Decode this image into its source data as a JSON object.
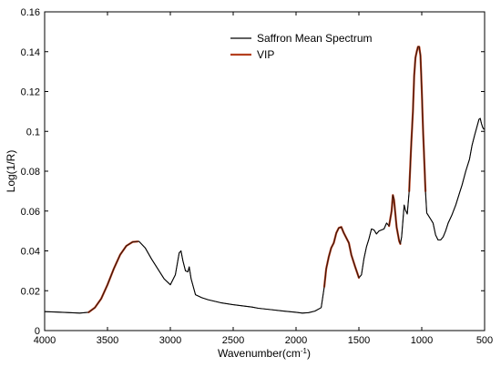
{
  "chart_data": {
    "type": "line",
    "title": "",
    "xlabel": "Wavenumber(cm",
    "xlabel_sup": "-1",
    "xlabel_tail": ")",
    "ylabel": "Log(1/R)",
    "xlim": [
      4000,
      500
    ],
    "ylim": [
      0,
      0.16
    ],
    "x_reversed": true,
    "grid": false,
    "legend_position": "top-right",
    "x_ticks": [
      4000,
      3500,
      3000,
      2500,
      2000,
      1500,
      1000,
      500
    ],
    "x_tick_labels": [
      "4000",
      "3500",
      "3000",
      "2500",
      "2000",
      "1500",
      "1000",
      "500"
    ],
    "y_ticks": [
      0,
      0.02,
      0.04,
      0.06,
      0.08,
      0.1,
      0.12,
      0.14,
      0.16
    ],
    "y_tick_labels": [
      "0",
      "0.02",
      "0.04",
      "0.06",
      "0.08",
      "0.1",
      "0.12",
      "0.14",
      "0.16"
    ],
    "series": [
      {
        "name": "Saffron Mean Spectrum",
        "color": "#000000",
        "points": [
          [
            4000,
            0.0095
          ],
          [
            3900,
            0.0093
          ],
          [
            3800,
            0.009
          ],
          [
            3720,
            0.0088
          ],
          [
            3650,
            0.0092
          ],
          [
            3600,
            0.0115
          ],
          [
            3550,
            0.016
          ],
          [
            3500,
            0.023
          ],
          [
            3450,
            0.031
          ],
          [
            3400,
            0.038
          ],
          [
            3350,
            0.0425
          ],
          [
            3300,
            0.0445
          ],
          [
            3250,
            0.0448
          ],
          [
            3200,
            0.0415
          ],
          [
            3150,
            0.036
          ],
          [
            3100,
            0.031
          ],
          [
            3050,
            0.026
          ],
          [
            3000,
            0.023
          ],
          [
            2960,
            0.028
          ],
          [
            2930,
            0.039
          ],
          [
            2915,
            0.04
          ],
          [
            2900,
            0.035
          ],
          [
            2880,
            0.03
          ],
          [
            2860,
            0.0295
          ],
          [
            2850,
            0.032
          ],
          [
            2835,
            0.026
          ],
          [
            2800,
            0.018
          ],
          [
            2750,
            0.0165
          ],
          [
            2700,
            0.0155
          ],
          [
            2600,
            0.014
          ],
          [
            2500,
            0.013
          ],
          [
            2400,
            0.0122
          ],
          [
            2350,
            0.0118
          ],
          [
            2300,
            0.0112
          ],
          [
            2200,
            0.0105
          ],
          [
            2100,
            0.0098
          ],
          [
            2000,
            0.0092
          ],
          [
            1950,
            0.0088
          ],
          [
            1900,
            0.009
          ],
          [
            1850,
            0.0098
          ],
          [
            1800,
            0.0115
          ],
          [
            1775,
            0.022
          ],
          [
            1760,
            0.031
          ],
          [
            1740,
            0.037
          ],
          [
            1720,
            0.0415
          ],
          [
            1700,
            0.044
          ],
          [
            1680,
            0.049
          ],
          [
            1660,
            0.0515
          ],
          [
            1640,
            0.052
          ],
          [
            1620,
            0.049
          ],
          [
            1600,
            0.0465
          ],
          [
            1580,
            0.044
          ],
          [
            1560,
            0.038
          ],
          [
            1530,
            0.032
          ],
          [
            1500,
            0.0265
          ],
          [
            1480,
            0.028
          ],
          [
            1460,
            0.036
          ],
          [
            1440,
            0.042
          ],
          [
            1420,
            0.046
          ],
          [
            1400,
            0.051
          ],
          [
            1380,
            0.0505
          ],
          [
            1360,
            0.0485
          ],
          [
            1340,
            0.05
          ],
          [
            1320,
            0.0505
          ],
          [
            1300,
            0.051
          ],
          [
            1280,
            0.054
          ],
          [
            1260,
            0.0525
          ],
          [
            1240,
            0.06
          ],
          [
            1230,
            0.068
          ],
          [
            1220,
            0.0655
          ],
          [
            1200,
            0.052
          ],
          [
            1180,
            0.045
          ],
          [
            1170,
            0.0435
          ],
          [
            1160,
            0.047
          ],
          [
            1150,
            0.055
          ],
          [
            1140,
            0.063
          ],
          [
            1130,
            0.0605
          ],
          [
            1115,
            0.0585
          ],
          [
            1100,
            0.07
          ],
          [
            1085,
            0.092
          ],
          [
            1070,
            0.11
          ],
          [
            1060,
            0.128
          ],
          [
            1050,
            0.137
          ],
          [
            1040,
            0.14
          ],
          [
            1030,
            0.1425
          ],
          [
            1020,
            0.1425
          ],
          [
            1010,
            0.138
          ],
          [
            1000,
            0.121
          ],
          [
            990,
            0.101
          ],
          [
            980,
            0.085
          ],
          [
            970,
            0.07
          ],
          [
            960,
            0.059
          ],
          [
            950,
            0.058
          ],
          [
            940,
            0.057
          ],
          [
            930,
            0.056
          ],
          [
            910,
            0.054
          ],
          [
            890,
            0.048
          ],
          [
            870,
            0.0455
          ],
          [
            850,
            0.0455
          ],
          [
            830,
            0.047
          ],
          [
            810,
            0.05
          ],
          [
            790,
            0.054
          ],
          [
            760,
            0.058
          ],
          [
            730,
            0.063
          ],
          [
            700,
            0.069
          ],
          [
            680,
            0.073
          ],
          [
            650,
            0.08
          ],
          [
            620,
            0.086
          ],
          [
            600,
            0.093
          ],
          [
            580,
            0.098
          ],
          [
            560,
            0.1025
          ],
          [
            545,
            0.106
          ],
          [
            535,
            0.1065
          ],
          [
            525,
            0.104
          ],
          [
            515,
            0.102
          ],
          [
            505,
            0.101
          ]
        ]
      },
      {
        "name": "VIP",
        "color": "#b5401f",
        "segments": [
          [
            [
              3650,
              0.0092
            ],
            [
              3600,
              0.0115
            ],
            [
              3550,
              0.016
            ],
            [
              3500,
              0.023
            ],
            [
              3450,
              0.031
            ],
            [
              3400,
              0.038
            ],
            [
              3350,
              0.0425
            ],
            [
              3300,
              0.0445
            ],
            [
              3260,
              0.0447
            ]
          ],
          [
            [
              1775,
              0.022
            ],
            [
              1760,
              0.031
            ],
            [
              1740,
              0.037
            ],
            [
              1720,
              0.0415
            ],
            [
              1700,
              0.044
            ],
            [
              1680,
              0.049
            ],
            [
              1660,
              0.0515
            ],
            [
              1640,
              0.052
            ],
            [
              1620,
              0.049
            ],
            [
              1600,
              0.0465
            ],
            [
              1580,
              0.044
            ],
            [
              1560,
              0.038
            ],
            [
              1530,
              0.032
            ],
            [
              1500,
              0.0265
            ]
          ],
          [
            [
              1260,
              0.0525
            ],
            [
              1240,
              0.06
            ],
            [
              1230,
              0.068
            ],
            [
              1220,
              0.0655
            ],
            [
              1200,
              0.052
            ],
            [
              1180,
              0.045
            ],
            [
              1170,
              0.0435
            ]
          ],
          [
            [
              1100,
              0.07
            ],
            [
              1085,
              0.092
            ],
            [
              1070,
              0.11
            ],
            [
              1060,
              0.128
            ],
            [
              1050,
              0.137
            ],
            [
              1040,
              0.14
            ],
            [
              1030,
              0.1425
            ],
            [
              1020,
              0.1425
            ],
            [
              1010,
              0.138
            ],
            [
              1000,
              0.121
            ],
            [
              990,
              0.101
            ],
            [
              980,
              0.085
            ],
            [
              970,
              0.07
            ]
          ]
        ]
      }
    ]
  }
}
